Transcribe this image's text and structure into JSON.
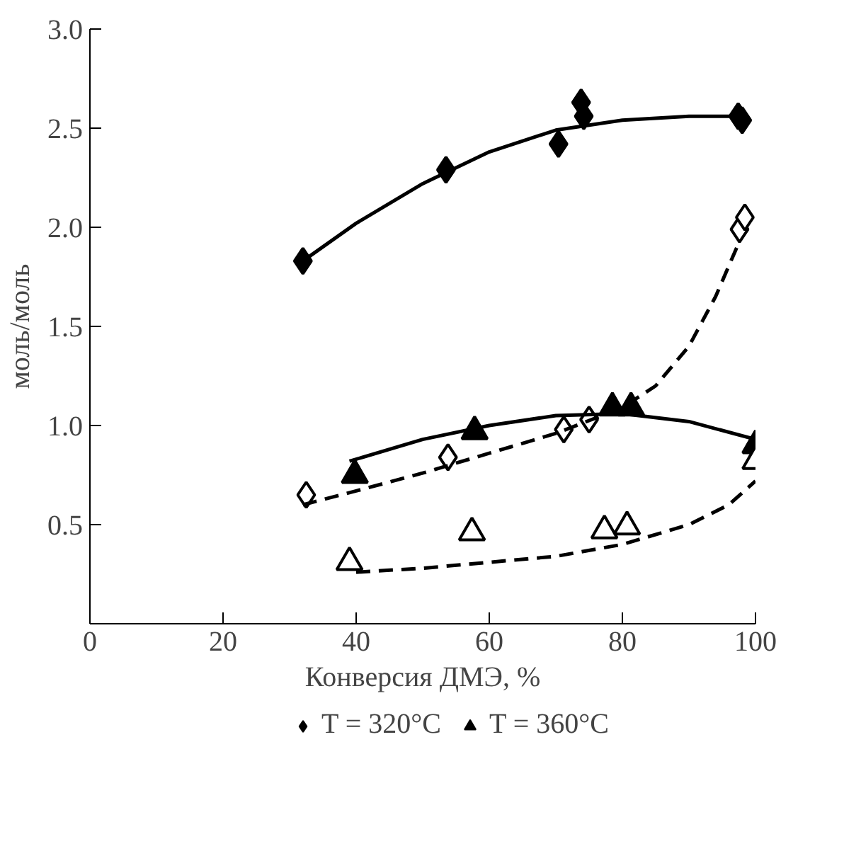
{
  "chart_data": {
    "type": "scatter",
    "xlabel": "Конверсия ДМЭ, %",
    "ylabel": "моль/моль",
    "xlim": [
      0,
      100
    ],
    "ylim": [
      0,
      3.0
    ],
    "xticks": [
      0,
      20,
      40,
      60,
      80,
      100
    ],
    "yticks": [
      {
        "value": 0.5,
        "label": "0.5"
      },
      {
        "value": 1.0,
        "label": "1.0"
      },
      {
        "value": 1.5,
        "label": "1.5"
      },
      {
        "value": 2.0,
        "label": "2.0"
      },
      {
        "value": 2.5,
        "label": "2.5"
      },
      {
        "value": 3.0,
        "label": "3.0"
      }
    ],
    "grid": false,
    "legend": "bottom",
    "series": [
      {
        "name": "T = 320°C",
        "color": "#000000",
        "marker": "diamond",
        "x": [
          32,
          53.5,
          70.4,
          73.8,
          74.2,
          97.4,
          98
        ],
        "values": [
          1.83,
          2.29,
          2.42,
          2.63,
          2.56,
          2.56,
          2.54
        ]
      },
      {
        "color": "#000000",
        "marker": "diamond",
        "x": [
          32.5,
          53.8,
          71.2,
          75,
          97.6,
          98.4
        ],
        "values": [
          0.65,
          0.84,
          0.98,
          1.03,
          1.99,
          2.05
        ]
      },
      {
        "name": "T = 360°C",
        "color": "#000000",
        "marker": "triangle",
        "x": [
          39.8,
          57.8,
          78.5,
          81.3,
          100
        ],
        "values": [
          0.75,
          0.97,
          1.09,
          1.09,
          0.9
        ]
      },
      {
        "color": "#000000",
        "marker": "triangle",
        "x": [
          39,
          57.4,
          77.3,
          80.7,
          100
        ],
        "values": [
          0.31,
          0.46,
          0.47,
          0.49,
          0.82
        ]
      },
      {
        "type": "line",
        "color": "#000000",
        "line_style": "solid",
        "x": [
          32,
          40,
          50,
          60,
          70,
          80,
          90,
          98
        ],
        "values": [
          1.83,
          2.02,
          2.22,
          2.38,
          2.49,
          2.54,
          2.56,
          2.56
        ]
      },
      {
        "type": "line",
        "color": "#000000",
        "line_style": "dashed",
        "x": [
          32,
          40,
          50,
          60,
          70,
          80,
          85,
          90,
          94,
          97.6
        ],
        "values": [
          0.6,
          0.67,
          0.76,
          0.86,
          0.96,
          1.09,
          1.2,
          1.4,
          1.65,
          1.93
        ]
      },
      {
        "type": "line",
        "color": "#000000",
        "line_style": "solid",
        "x": [
          39,
          50,
          60,
          70,
          80,
          90,
          100
        ],
        "values": [
          0.82,
          0.93,
          1.0,
          1.05,
          1.06,
          1.02,
          0.93
        ]
      },
      {
        "type": "line",
        "color": "#000000",
        "line_style": "dashed",
        "x": [
          40,
          50,
          60,
          70,
          80,
          90,
          96,
          100
        ],
        "values": [
          0.26,
          0.28,
          0.31,
          0.34,
          0.4,
          0.5,
          0.6,
          0.72
        ]
      }
    ]
  }
}
